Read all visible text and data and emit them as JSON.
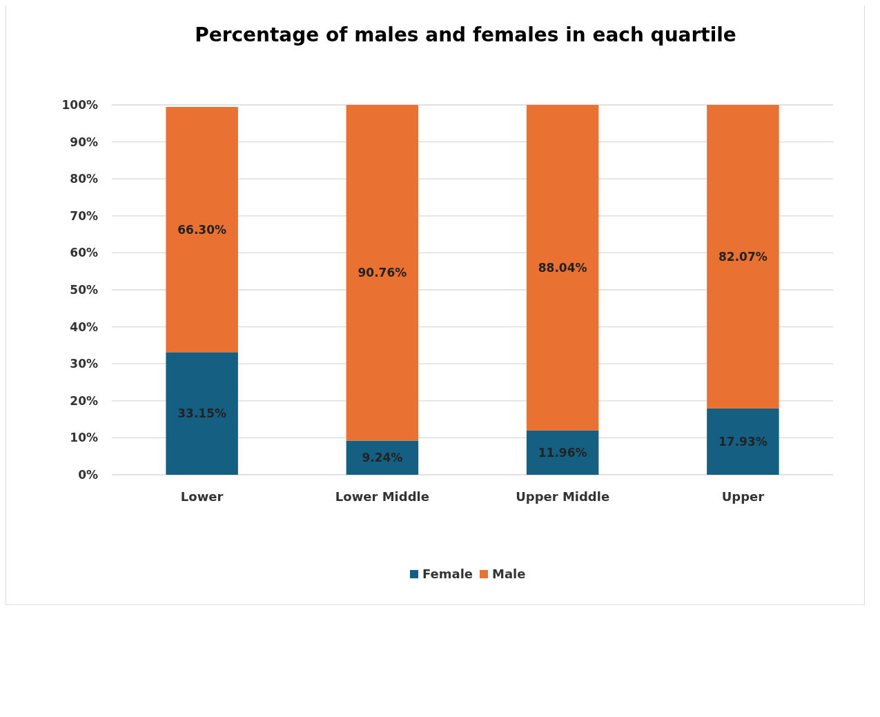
{
  "chart_data": {
    "type": "bar",
    "title": "Percentage of males and females in each quartile",
    "categories": [
      "Lower",
      "Lower Middle",
      "Upper Middle",
      "Upper"
    ],
    "stacked": true,
    "series": [
      {
        "name": "Female",
        "color": "#156082",
        "values": [
          33.15,
          9.24,
          11.96,
          17.93
        ],
        "value_labels": [
          "33.15%",
          "9.24%",
          "11.96%",
          "17.93%"
        ]
      },
      {
        "name": "Male",
        "color": "#e97132",
        "values": [
          66.3,
          90.76,
          88.04,
          82.07
        ],
        "value_labels": [
          "66.30%",
          "90.76%",
          "88.04%",
          "82.07%"
        ]
      }
    ],
    "ylim": [
      0,
      100
    ],
    "yticks": [
      {
        "value": 0,
        "label": "0%"
      },
      {
        "value": 10,
        "label": "10%"
      },
      {
        "value": 20,
        "label": "20%"
      },
      {
        "value": 30,
        "label": "30%"
      },
      {
        "value": 40,
        "label": "40%"
      },
      {
        "value": 50,
        "label": "50%"
      },
      {
        "value": 60,
        "label": "60%"
      },
      {
        "value": 70,
        "label": "70%"
      },
      {
        "value": 80,
        "label": "80%"
      },
      {
        "value": 90,
        "label": "90%"
      },
      {
        "value": 100,
        "label": "100%"
      }
    ],
    "grid": "y",
    "legend": "bottom"
  }
}
